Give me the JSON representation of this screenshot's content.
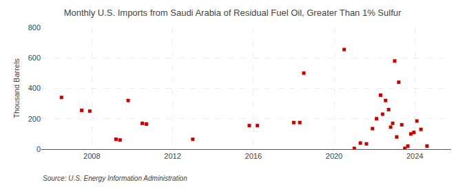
{
  "chart_data": {
    "type": "scatter",
    "title": "Monthly U.S. Imports from Saudi Arabia of Residual Fuel Oil, Greater Than 1% Sulfur",
    "ylabel": "Thousand Barrels",
    "annotations": [
      "Source: U.S. Energy Information Administration"
    ],
    "x": [
      2006.5,
      2007.5,
      2007.9,
      2009.2,
      2009.4,
      2009.8,
      2010.5,
      2010.7,
      2013.0,
      2015.8,
      2016.2,
      2018.0,
      2018.3,
      2018.5,
      2020.5,
      2021.0,
      2021.3,
      2021.6,
      2021.9,
      2022.1,
      2022.3,
      2022.4,
      2022.55,
      2022.7,
      2022.8,
      2022.9,
      2023.0,
      2023.1,
      2023.2,
      2023.35,
      2023.5,
      2023.65,
      2023.8,
      2023.95,
      2024.1,
      2024.3,
      2024.6
    ],
    "values": [
      340,
      255,
      250,
      65,
      60,
      320,
      170,
      165,
      65,
      155,
      155,
      175,
      175,
      500,
      655,
      5,
      40,
      35,
      135,
      200,
      355,
      230,
      320,
      260,
      145,
      170,
      580,
      80,
      440,
      160,
      5,
      20,
      100,
      110,
      185,
      130,
      20
    ],
    "color": "#cc0000",
    "marker": "square",
    "xlim": [
      2005.5,
      2025.8
    ],
    "xticks": [
      2008,
      2012,
      2016,
      2020,
      2024
    ],
    "ylim": [
      0,
      800
    ],
    "yticks": [
      0,
      200,
      400,
      600,
      800
    ],
    "grid": true
  }
}
